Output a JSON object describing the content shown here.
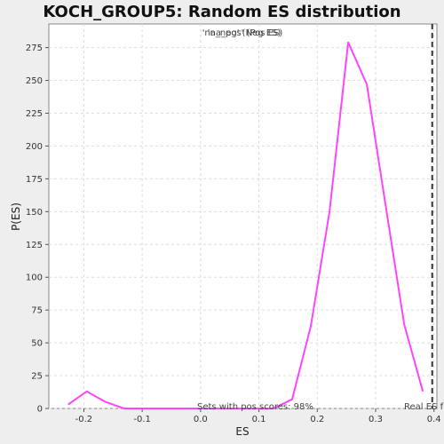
{
  "chart_data": {
    "type": "line",
    "title": "KOCH_GROUP5: Random ES distribution",
    "xlabel": "ES",
    "ylabel": "P(ES)",
    "xlim": [
      -0.26,
      0.405
    ],
    "ylim": [
      0,
      293
    ],
    "xticks": [
      -0.2,
      -0.1,
      0.0,
      0.1,
      0.2,
      0.3,
      0.4
    ],
    "xtick_labels": [
      "-0.2",
      "-0.1",
      "0.0",
      "0.1",
      "0.2",
      "0.3",
      "0.4"
    ],
    "yticks": [
      0,
      25,
      50,
      75,
      100,
      125,
      150,
      175,
      200,
      225,
      250,
      275
    ],
    "ytick_labels": [
      "0",
      "25",
      "50",
      "75",
      "100",
      "125",
      "150",
      "175",
      "200",
      "225",
      "250",
      "275"
    ],
    "grid": true,
    "legend": {
      "position": "top-center",
      "entries": [
        "'na_neg' (Neg ES)",
        "'na_pos' (Pos ES)"
      ],
      "colors": [
        "#8800cc",
        "#dd33dd"
      ]
    },
    "series": [
      {
        "color": "#ff44ff",
        "x": [
          -0.227,
          -0.195,
          -0.163,
          -0.131,
          -0.099,
          -0.067,
          -0.035,
          -0.003,
          0.029,
          0.061,
          0.093,
          0.125,
          0.157,
          0.189,
          0.221,
          0.253,
          0.285,
          0.317,
          0.349,
          0.381
        ],
        "y": [
          3,
          13,
          5,
          0,
          0,
          0,
          0,
          0,
          0,
          0,
          0,
          0,
          7,
          63,
          150,
          279,
          247,
          155,
          64,
          13
        ]
      }
    ],
    "real_es": {
      "x": 0.397,
      "label": "Real ES f",
      "color": "#333333"
    },
    "annotations": [
      {
        "text": "Sets with pos scores: 98%"
      }
    ]
  }
}
